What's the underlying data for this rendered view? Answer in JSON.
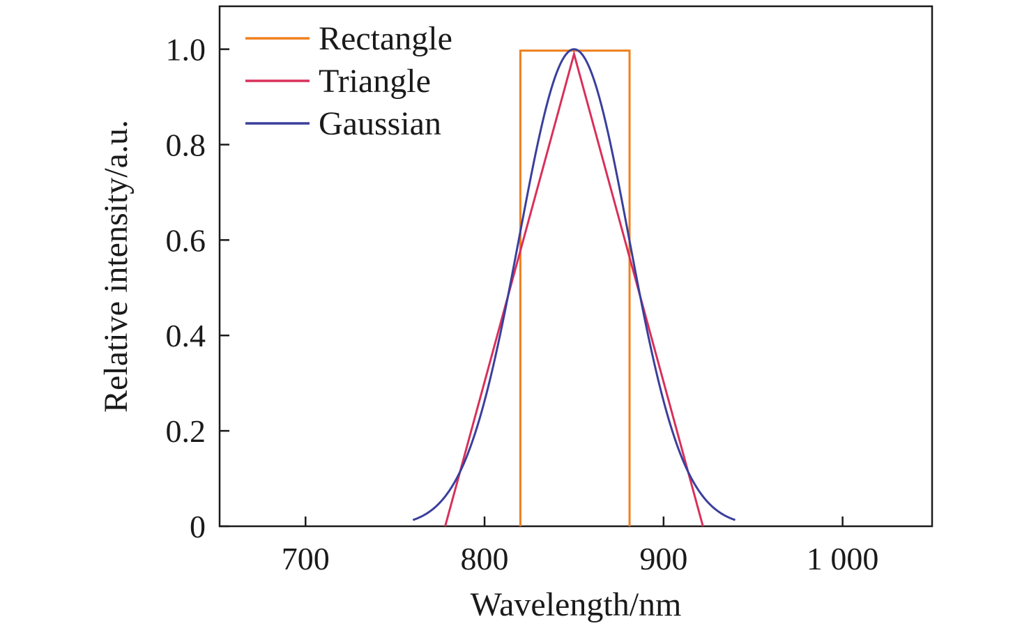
{
  "chart_data": {
    "type": "line",
    "title": "",
    "xlabel": "Wavelength/nm",
    "ylabel": "Relative intensity/a.u.",
    "xlim": [
      652,
      1050
    ],
    "ylim": [
      0,
      1.09
    ],
    "x_ticks": [
      700,
      800,
      900,
      1000
    ],
    "x_tick_labels": [
      "700",
      "800",
      "900",
      "1 000"
    ],
    "y_ticks": [
      0,
      0.2,
      0.4,
      0.6,
      0.8,
      1.0
    ],
    "y_tick_labels": [
      "0",
      "0.2",
      "0.4",
      "0.6",
      "0.8",
      "1.0"
    ],
    "grid": false,
    "legend_position": "top-left",
    "series": [
      {
        "name": "Rectangle",
        "color": "#f07f1e",
        "kind": "rectangle",
        "x": [
          820,
          820,
          881,
          881
        ],
        "y": [
          0,
          0.997,
          0.997,
          0
        ]
      },
      {
        "name": "Triangle",
        "color": "#d8305a",
        "kind": "triangle",
        "x": [
          778,
          850,
          922
        ],
        "y": [
          0,
          0.99,
          0
        ]
      },
      {
        "name": "Gaussian",
        "color": "#3a3f9c",
        "kind": "gaussian",
        "center": 850,
        "fwhm": 72,
        "peak": 1.0,
        "x_range": [
          760,
          940
        ]
      }
    ]
  }
}
